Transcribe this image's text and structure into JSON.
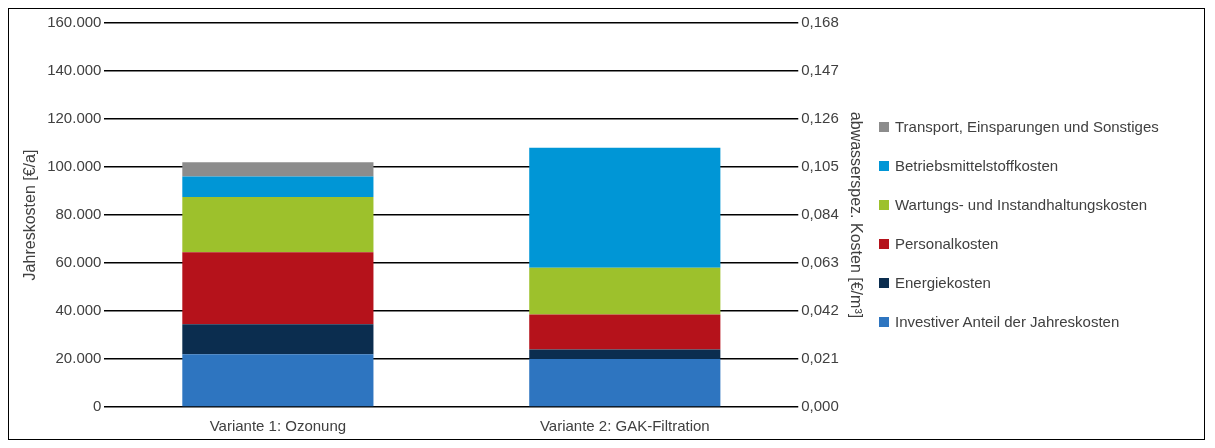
{
  "chart_data": {
    "type": "bar",
    "stacked": true,
    "ylabel": "Jahreskosten [€/a]",
    "y2label": "abwasserspez. Kosten [€/m³]",
    "categories": [
      "Variante 1: Ozonung",
      "Variante 2: GAK-Filtration"
    ],
    "series": [
      {
        "name": "Investiver Anteil der Jahreskosten",
        "color": "#2e75c0",
        "values": [
          22000,
          20000
        ]
      },
      {
        "name": "Energiekosten",
        "color": "#0b2d4f",
        "values": [
          12500,
          4000
        ]
      },
      {
        "name": "Personalkosten",
        "color": "#b5121b",
        "values": [
          30000,
          14500
        ]
      },
      {
        "name": "Wartungs- und Instandhaltungskosten",
        "color": "#9dc12c",
        "values": [
          23000,
          19500
        ]
      },
      {
        "name": "Betriebsmittelstoffkosten",
        "color": "#0096d6",
        "values": [
          8500,
          50000
        ]
      },
      {
        "name": "Transport, Einsparungen und Sonstiges",
        "color": "#8c8c8c",
        "values": [
          6000,
          null
        ]
      }
    ],
    "ylim": [
      0,
      160000
    ],
    "yticks": [
      {
        "value": 0,
        "label": "0"
      },
      {
        "value": 20000,
        "label": "20.000"
      },
      {
        "value": 40000,
        "label": "40.000"
      },
      {
        "value": 60000,
        "label": "60.000"
      },
      {
        "value": 80000,
        "label": "80.000"
      },
      {
        "value": 100000,
        "label": "100.000"
      },
      {
        "value": 120000,
        "label": "120.000"
      },
      {
        "value": 140000,
        "label": "140.000"
      },
      {
        "value": 160000,
        "label": "160.000"
      }
    ],
    "y2lim": [
      0,
      0.168
    ],
    "y2ticks": [
      {
        "value": 0,
        "label": "0,000"
      },
      {
        "value": 0.021,
        "label": "0,021"
      },
      {
        "value": 0.042,
        "label": "0,042"
      },
      {
        "value": 0.063,
        "label": "0,063"
      },
      {
        "value": 0.084,
        "label": "0,084"
      },
      {
        "value": 0.105,
        "label": "0,105"
      },
      {
        "value": 0.126,
        "label": "0,126"
      },
      {
        "value": 0.147,
        "label": "0,147"
      },
      {
        "value": 0.168,
        "label": "0,168"
      }
    ],
    "grid": "y",
    "legend": "right"
  }
}
